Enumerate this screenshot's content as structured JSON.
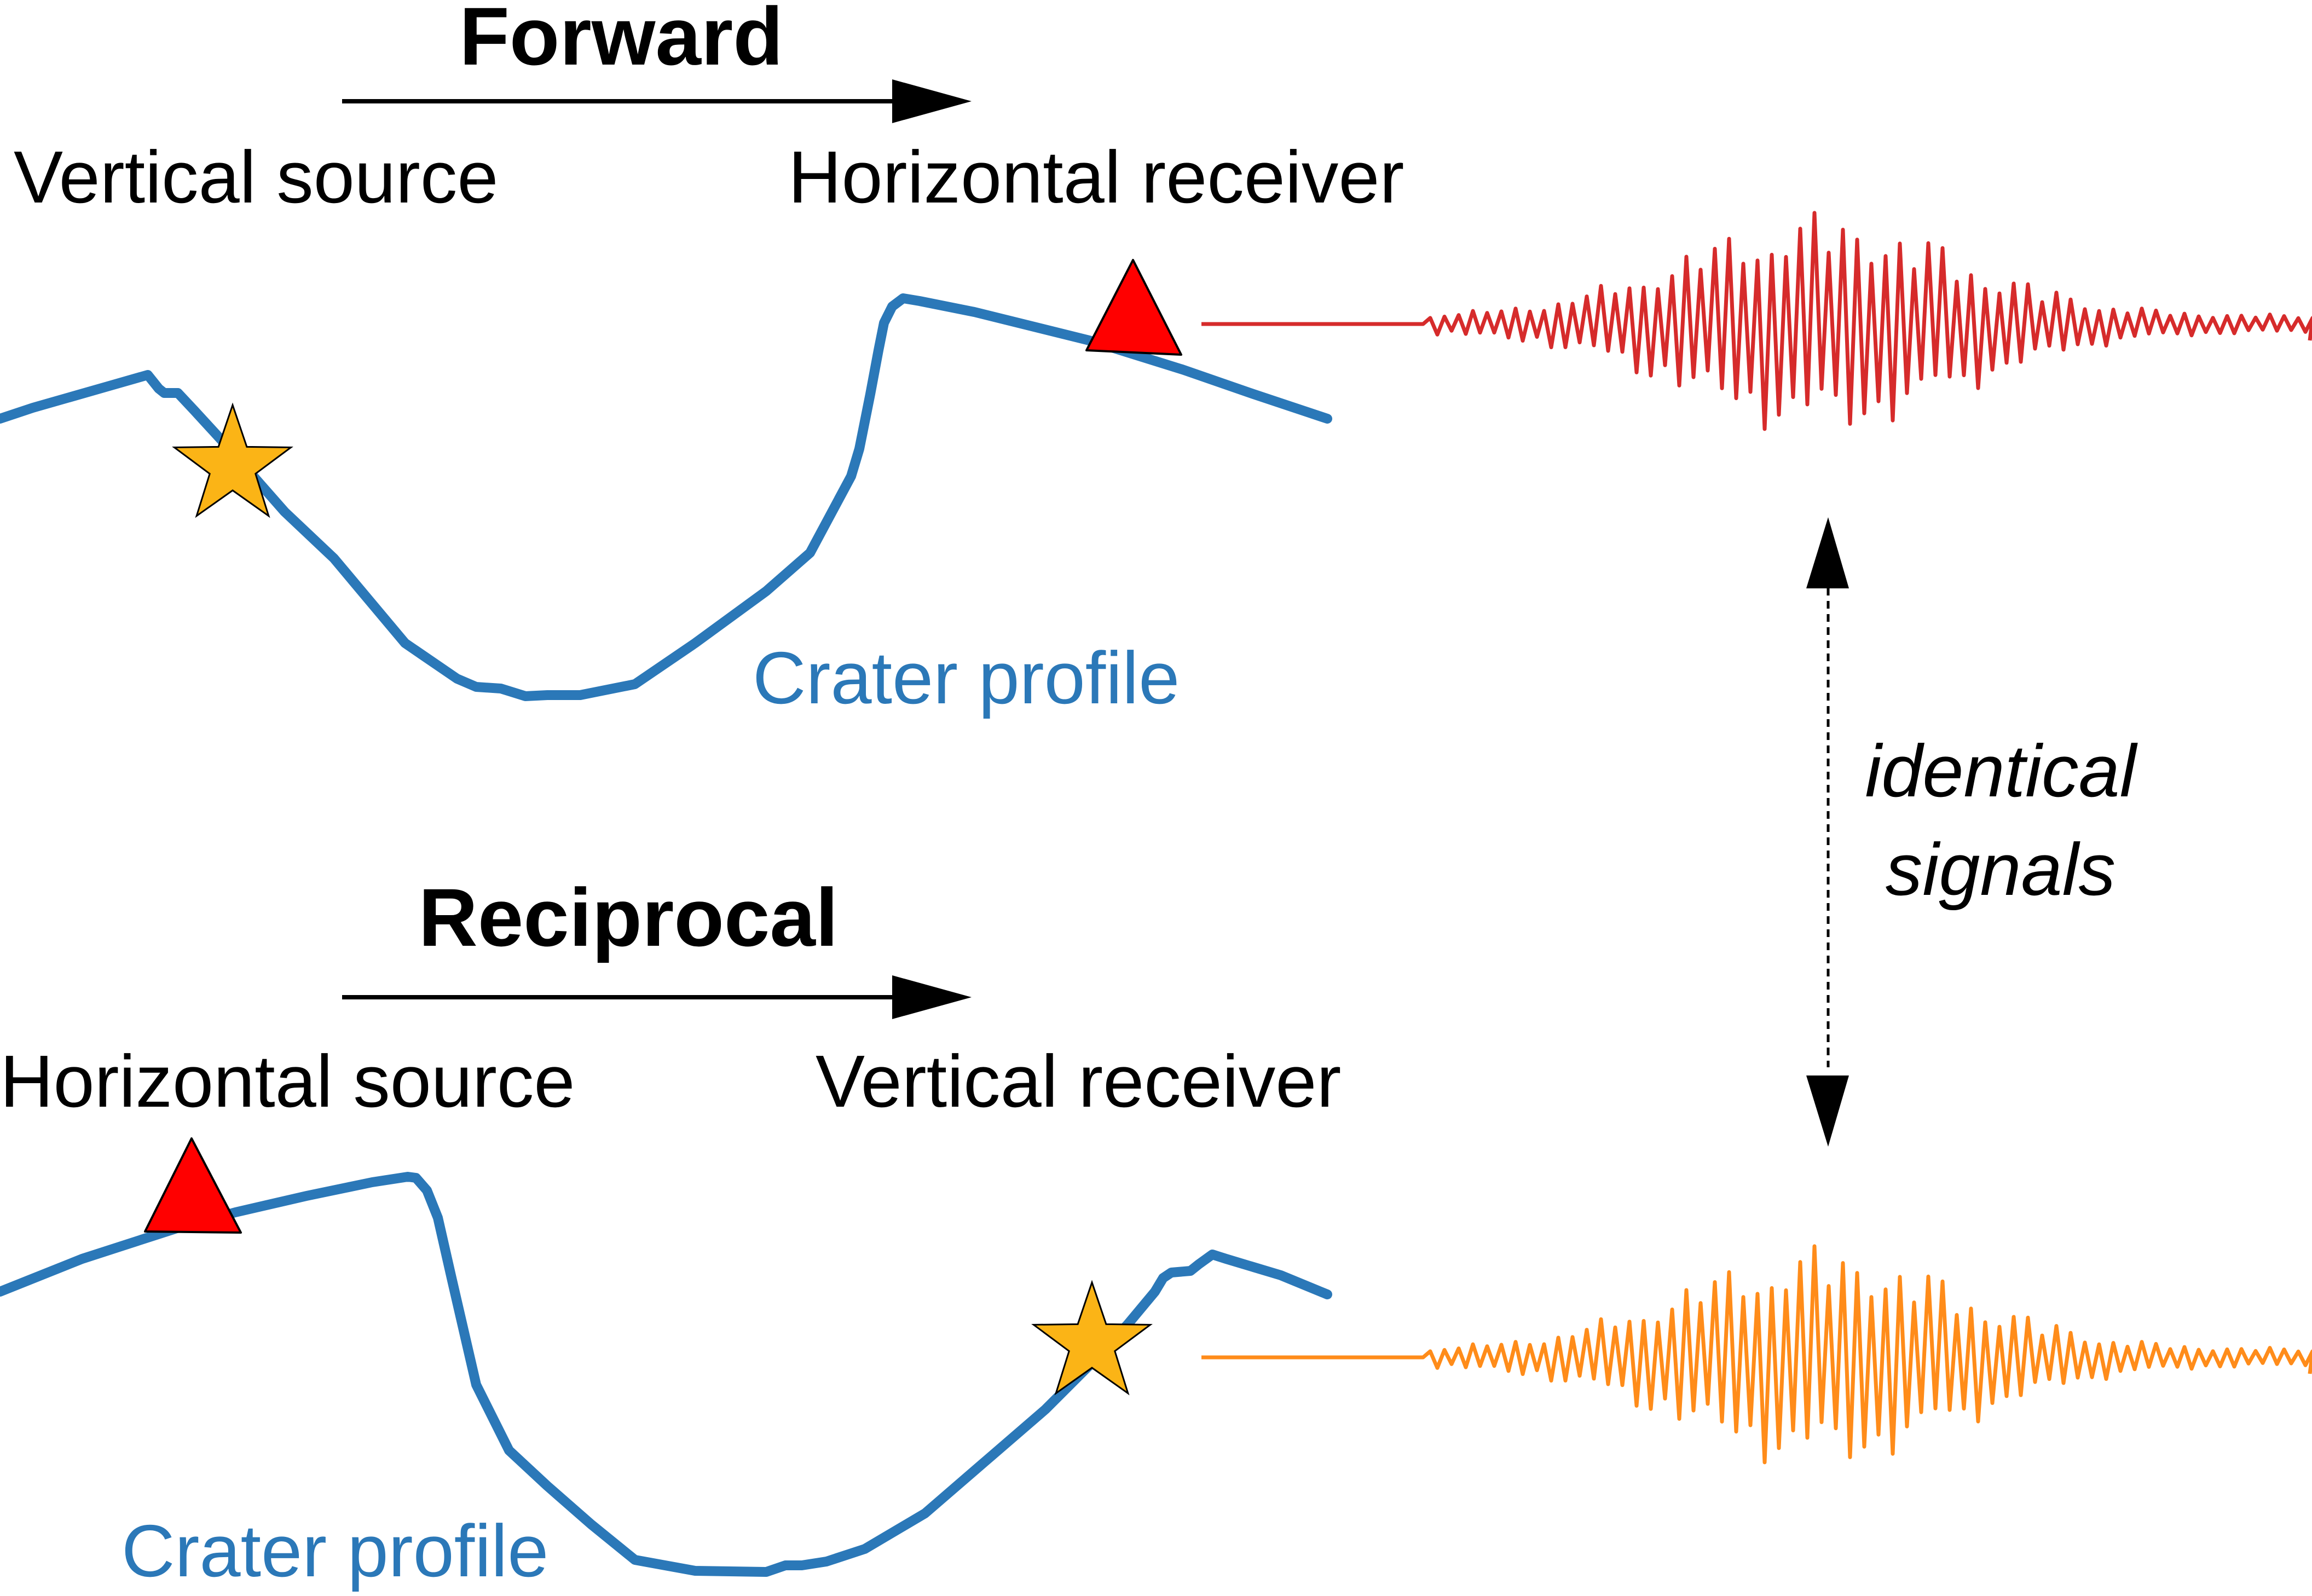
{
  "colors": {
    "crater": "#2b78b8",
    "forward_signal": "#d62b2b",
    "reciprocal_signal": "#ff8c1a",
    "star": "#fbb416",
    "triangle": "#ff0000",
    "arrow": "#000000"
  },
  "forward": {
    "title": "Forward",
    "source_label": "Vertical source",
    "receiver_label": "Horizontal receiver",
    "crater_label": "Crater profile",
    "source_icon": "star-icon",
    "receiver_icon": "triangle-icon"
  },
  "reciprocal": {
    "title": "Reciprocal",
    "source_label": "Horizontal source",
    "receiver_label": "Vertical receiver",
    "crater_label": "Crater profile",
    "source_icon": "triangle-icon",
    "receiver_icon": "star-icon"
  },
  "comparison": {
    "line1": "identical",
    "line2": "signals"
  }
}
